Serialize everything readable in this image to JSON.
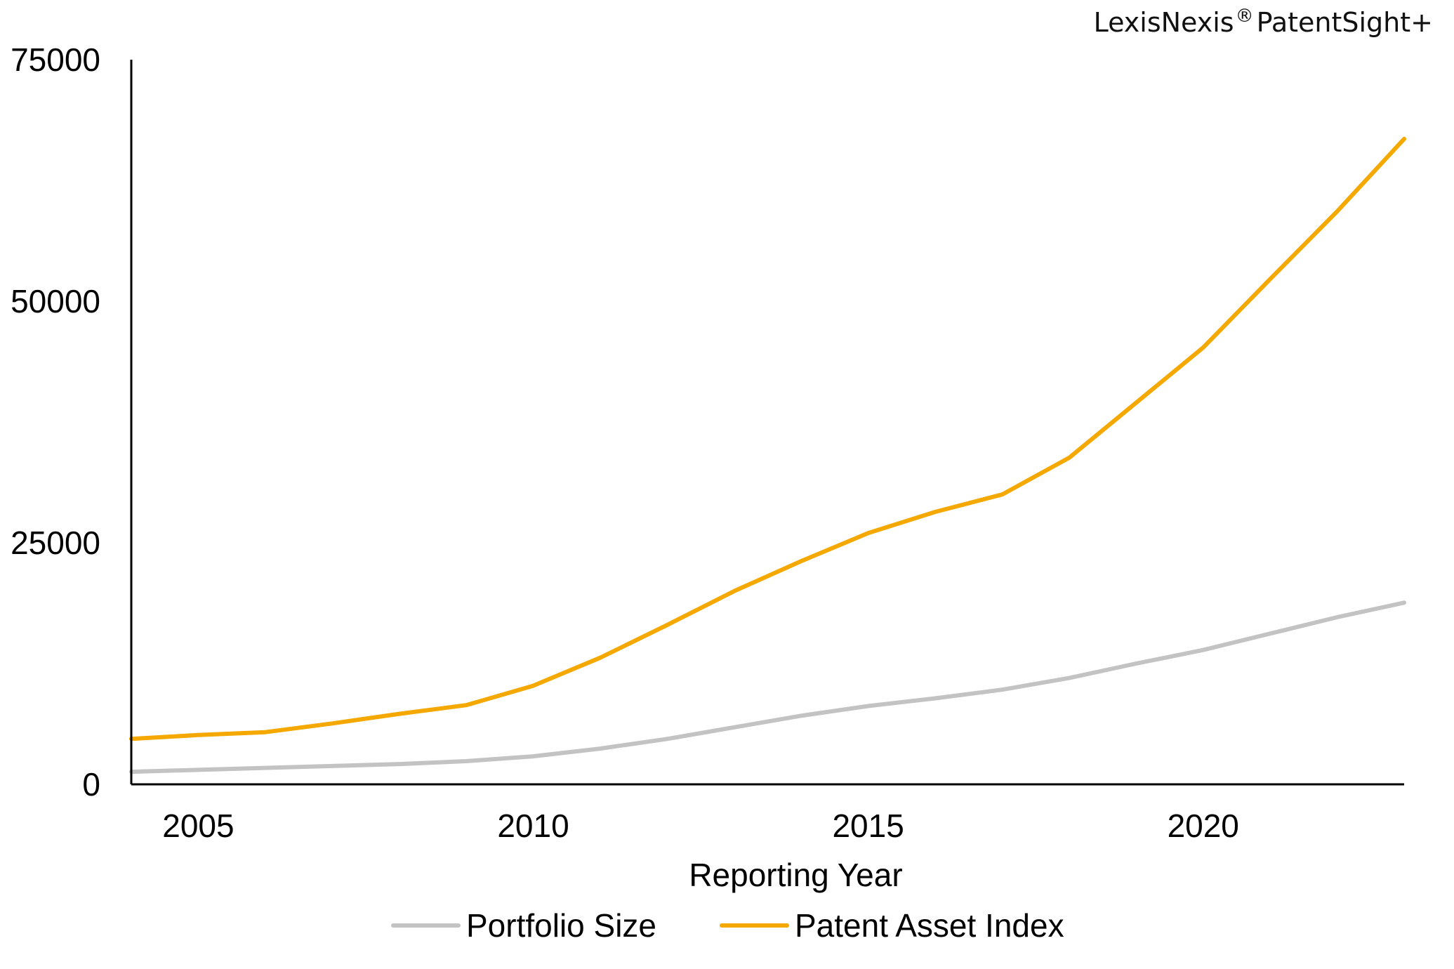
{
  "watermark": {
    "brand": "LexisNexis",
    "registered": "®",
    "product": "PatentSight+"
  },
  "chart_data": {
    "type": "line",
    "xlabel": "Reporting Year",
    "ylabel": "",
    "xlim": [
      2004,
      2023
    ],
    "ylim": [
      0,
      75000
    ],
    "x_ticks": [
      2005,
      2010,
      2015,
      2020
    ],
    "y_ticks": [
      0,
      25000,
      50000,
      75000
    ],
    "grid": false,
    "legend_position": "bottom",
    "x": [
      2004,
      2005,
      2006,
      2007,
      2008,
      2009,
      2010,
      2011,
      2012,
      2013,
      2014,
      2015,
      2016,
      2017,
      2018,
      2019,
      2020,
      2021,
      2022,
      2023
    ],
    "series": [
      {
        "name": "Portfolio Size",
        "color": "#c3c3c3",
        "values": [
          1300,
          1500,
          1700,
          1900,
          2100,
          2400,
          2900,
          3700,
          4700,
          5900,
          7100,
          8100,
          8900,
          9800,
          11000,
          12500,
          13900,
          15600,
          17300,
          18800
        ]
      },
      {
        "name": "Patent Asset Index",
        "color": "#f5a800",
        "values": [
          4700,
          5100,
          5400,
          6300,
          7300,
          8200,
          10200,
          13100,
          16500,
          20000,
          23100,
          26000,
          28200,
          30000,
          33800,
          39500,
          45200,
          52300,
          59300,
          66800
        ]
      }
    ]
  }
}
